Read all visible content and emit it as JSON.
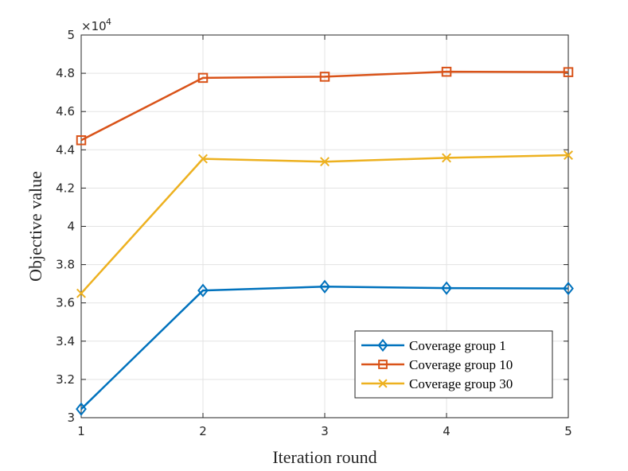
{
  "chart_data": {
    "type": "line",
    "title": "",
    "xlabel": "Iteration round",
    "ylabel": "Objective value",
    "x": [
      1,
      2,
      3,
      4,
      5
    ],
    "x_ticks": [
      "1",
      "2",
      "3",
      "4",
      "5"
    ],
    "xlim": [
      1,
      5
    ],
    "ylim": [
      3.0,
      5.0
    ],
    "y_ticks": [
      "3",
      "3.2",
      "3.4",
      "3.6",
      "3.8",
      "4",
      "4.2",
      "4.4",
      "4.6",
      "4.8",
      "5"
    ],
    "y_tick_values": [
      3.0,
      3.2,
      3.4,
      3.6,
      3.8,
      4.0,
      4.2,
      4.4,
      4.6,
      4.8,
      5.0
    ],
    "y_multiplier_base": "×10",
    "y_multiplier_exp": "4",
    "grid": true,
    "legend_position": "bottom-right",
    "series": [
      {
        "name": "Coverage group 1",
        "values": [
          3.045,
          3.665,
          3.685,
          3.677,
          3.675
        ],
        "color": "#0072BD",
        "marker": "diamond"
      },
      {
        "name": "Coverage group 10",
        "values": [
          4.45,
          4.776,
          4.782,
          4.808,
          4.806
        ],
        "color": "#D95319",
        "marker": "square"
      },
      {
        "name": "Coverage group 30",
        "values": [
          3.65,
          4.353,
          4.338,
          4.358,
          4.372
        ],
        "color": "#EDB120",
        "marker": "x"
      }
    ]
  }
}
